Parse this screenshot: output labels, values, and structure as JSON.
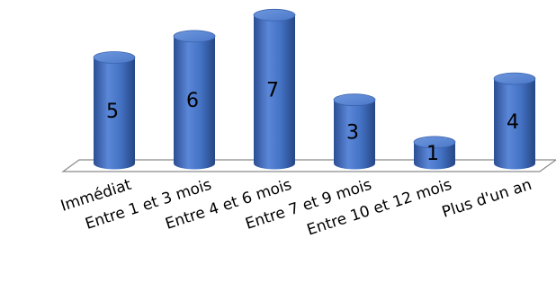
{
  "chart_data": {
    "type": "bar",
    "categories": [
      "Immédiat",
      "Entre 1 et 3 mois",
      "Entre 4 et 6 mois",
      "Entre 7 et 9 mois",
      "Entre 10 et 12 mois",
      "Plus d'un an"
    ],
    "values": [
      5,
      6,
      7,
      3,
      1,
      4
    ],
    "ylim": [
      0,
      7
    ],
    "grid": false,
    "legend": "none",
    "bar_color": "#4472C4",
    "bar_shape": "3d-cylinder"
  }
}
